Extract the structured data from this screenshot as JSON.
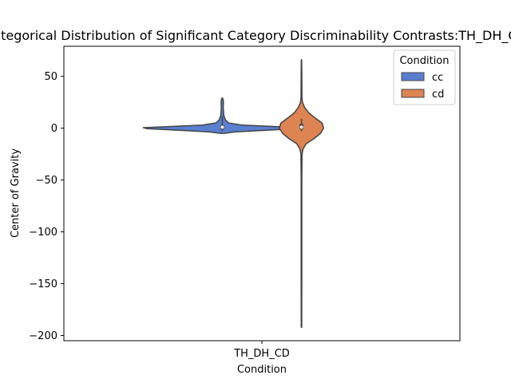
{
  "chart_data": {
    "type": "violin",
    "title": "Categorical Distribution of Significant Category Discriminability Contrasts:TH_DH_CD",
    "xlabel": "Condition",
    "ylabel": "Center of Gravity",
    "categories": [
      "TH_DH_CD"
    ],
    "ylim": [
      -205,
      79
    ],
    "yticks": [
      50,
      0,
      -50,
      -100,
      -150,
      -200
    ],
    "grid": false,
    "legend": {
      "title": "Condition",
      "placement": "top-right"
    },
    "series": [
      {
        "name": "cc",
        "color": "#5a7fd0",
        "min": -5,
        "max": 29,
        "q1": -1,
        "median": 1,
        "q3": 3,
        "whisker_low": -3,
        "whisker_high": 12,
        "profile": [
          {
            "y": -5,
            "w": 0.02
          },
          {
            "y": -3.5,
            "w": 0.18
          },
          {
            "y": -2,
            "w": 0.55
          },
          {
            "y": -0.5,
            "w": 0.95
          },
          {
            "y": 0.5,
            "w": 1.0
          },
          {
            "y": 1.5,
            "w": 0.7
          },
          {
            "y": 3,
            "w": 0.25
          },
          {
            "y": 5,
            "w": 0.08
          },
          {
            "y": 8,
            "w": 0.04
          },
          {
            "y": 12,
            "w": 0.02
          },
          {
            "y": 20,
            "w": 0.012
          },
          {
            "y": 26,
            "w": 0.015
          },
          {
            "y": 29,
            "w": 0.005
          }
        ]
      },
      {
        "name": "cd",
        "color": "#dd8452",
        "min": -192,
        "max": 66,
        "q1": -1,
        "median": 1,
        "q3": 4,
        "whisker_low": -3,
        "whisker_high": 9,
        "profile": [
          {
            "y": -192,
            "w": 0.003
          },
          {
            "y": -150,
            "w": 0.004
          },
          {
            "y": -100,
            "w": 0.004
          },
          {
            "y": -50,
            "w": 0.004
          },
          {
            "y": -25,
            "w": 0.007
          },
          {
            "y": -20,
            "w": 0.02
          },
          {
            "y": -15,
            "w": 0.06
          },
          {
            "y": -10,
            "w": 0.16
          },
          {
            "y": -5,
            "w": 0.24
          },
          {
            "y": 0,
            "w": 0.28
          },
          {
            "y": 5,
            "w": 0.26
          },
          {
            "y": 10,
            "w": 0.17
          },
          {
            "y": 15,
            "w": 0.09
          },
          {
            "y": 20,
            "w": 0.04
          },
          {
            "y": 25,
            "w": 0.012
          },
          {
            "y": 30,
            "w": 0.006
          },
          {
            "y": 40,
            "w": 0.005
          },
          {
            "y": 55,
            "w": 0.004
          },
          {
            "y": 66,
            "w": 0.002
          }
        ]
      }
    ]
  }
}
